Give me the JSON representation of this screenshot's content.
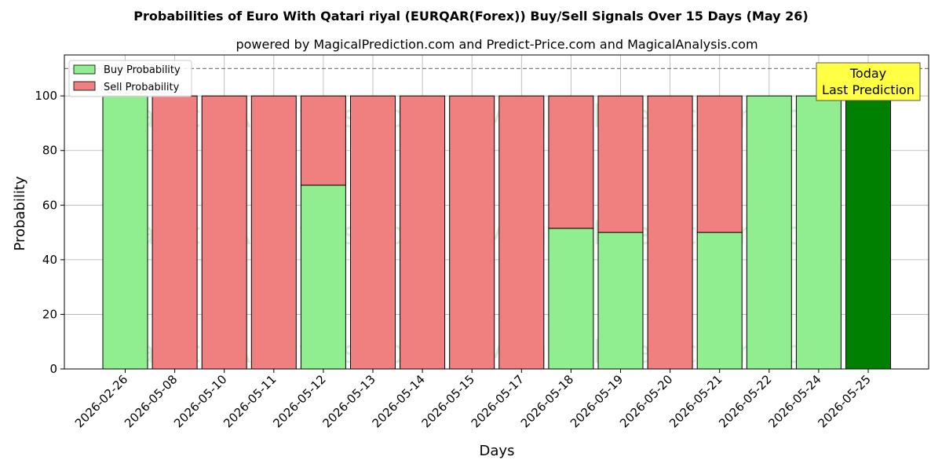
{
  "chart_data": {
    "type": "bar",
    "stacked": true,
    "title": "Probabilities of Euro With Qatari riyal (EURQAR(Forex)) Buy/Sell Signals Over 15 Days (May 26)",
    "subtitle": "powered by MagicalPrediction.com and Predict-Price.com and MagicalAnalysis.com",
    "xlabel": "Days",
    "ylabel": "Probability",
    "ylim": [
      0,
      115
    ],
    "yticks": [
      0,
      20,
      40,
      60,
      80,
      100
    ],
    "reference_line": 110,
    "grid": true,
    "legend_position": "top-left",
    "categories": [
      "2026-02-26",
      "2026-05-08",
      "2026-05-10",
      "2026-05-11",
      "2026-05-12",
      "2026-05-13",
      "2026-05-14",
      "2026-05-15",
      "2026-05-17",
      "2026-05-18",
      "2026-05-19",
      "2026-05-20",
      "2026-05-21",
      "2026-05-22",
      "2026-05-24",
      "2026-05-25"
    ],
    "series": [
      {
        "name": "Buy Probability",
        "color": "#90ee90",
        "values": [
          100,
          0,
          0,
          0,
          67.3,
          0,
          0,
          0,
          0,
          51.5,
          50,
          0,
          50,
          100,
          100,
          100
        ]
      },
      {
        "name": "Sell Probability",
        "color": "#f08080",
        "values": [
          0,
          100,
          100,
          100,
          32.7,
          100,
          100,
          100,
          100,
          48.5,
          50,
          100,
          50,
          0,
          0,
          0
        ]
      }
    ],
    "highlight": {
      "index": 15,
      "color": "#008000"
    },
    "annotation": {
      "line1": "Today",
      "line2": "Last Prediction",
      "color": "#ffff44"
    },
    "watermarks": [
      "MagicalAnalysis.com",
      "MagicalPrediction.com"
    ]
  }
}
